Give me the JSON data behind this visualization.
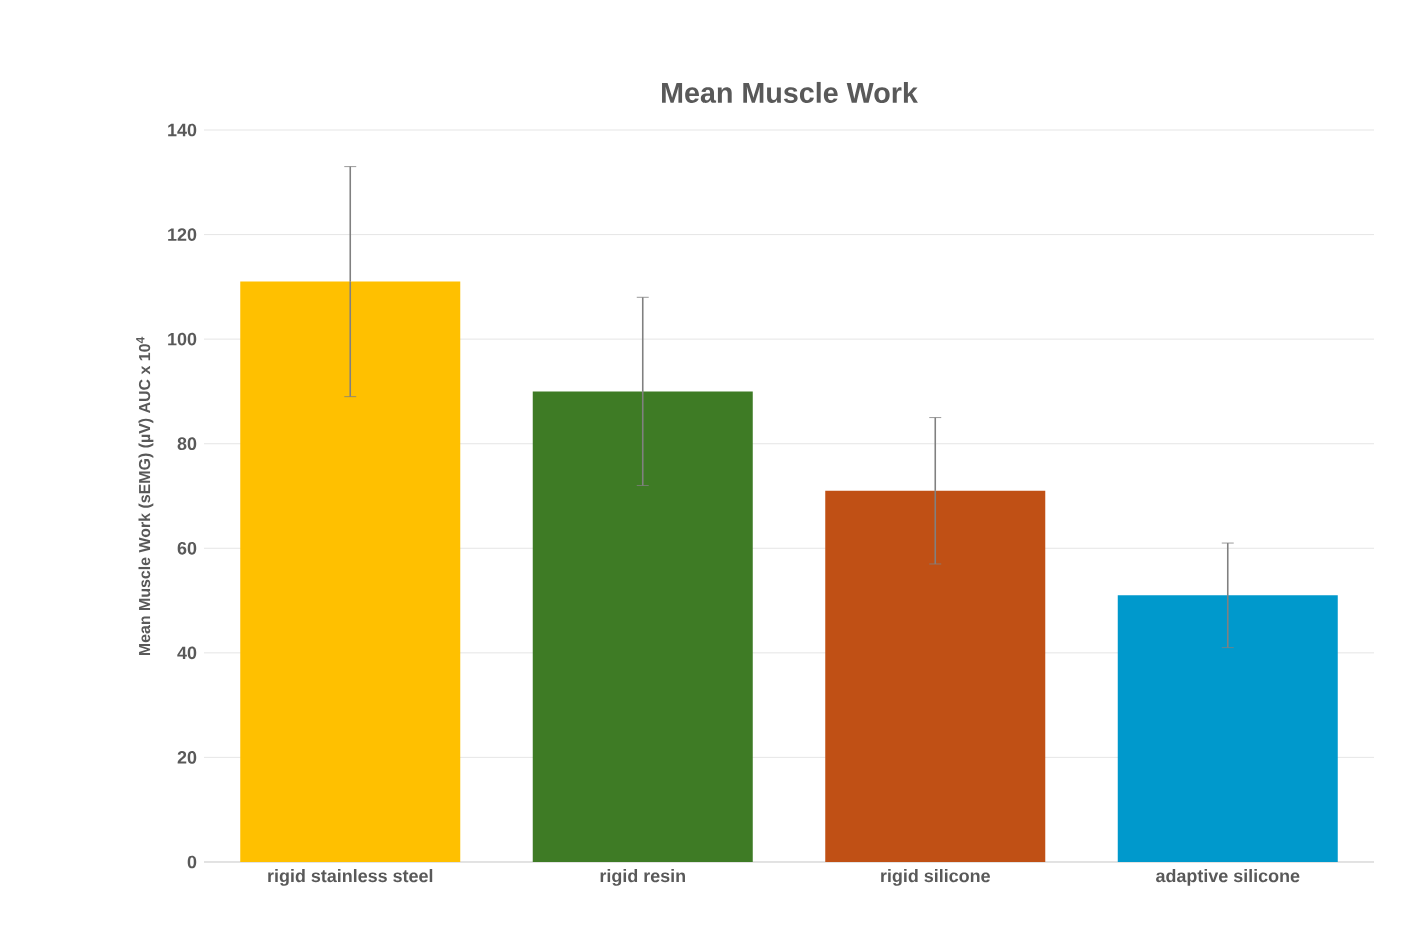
{
  "chart_data": {
    "type": "bar",
    "title": "Mean Muscle Work",
    "ylabel": "Mean Muscle Work (sEMG) (µV) AUC x 10$^{4}$",
    "categories": [
      "rigid stainless steel",
      "rigid resin",
      "rigid silicone",
      "adaptive silicone"
    ],
    "values": [
      111,
      90,
      71,
      51
    ],
    "errors": [
      22,
      18,
      14,
      10
    ],
    "colors": [
      "#ffc000",
      "#3e7b25",
      "#c05015",
      "#0099cc"
    ],
    "ylim": [
      0,
      140
    ],
    "yticks": [
      0,
      20,
      40,
      60,
      80,
      100,
      120,
      140
    ],
    "grid": "y"
  }
}
